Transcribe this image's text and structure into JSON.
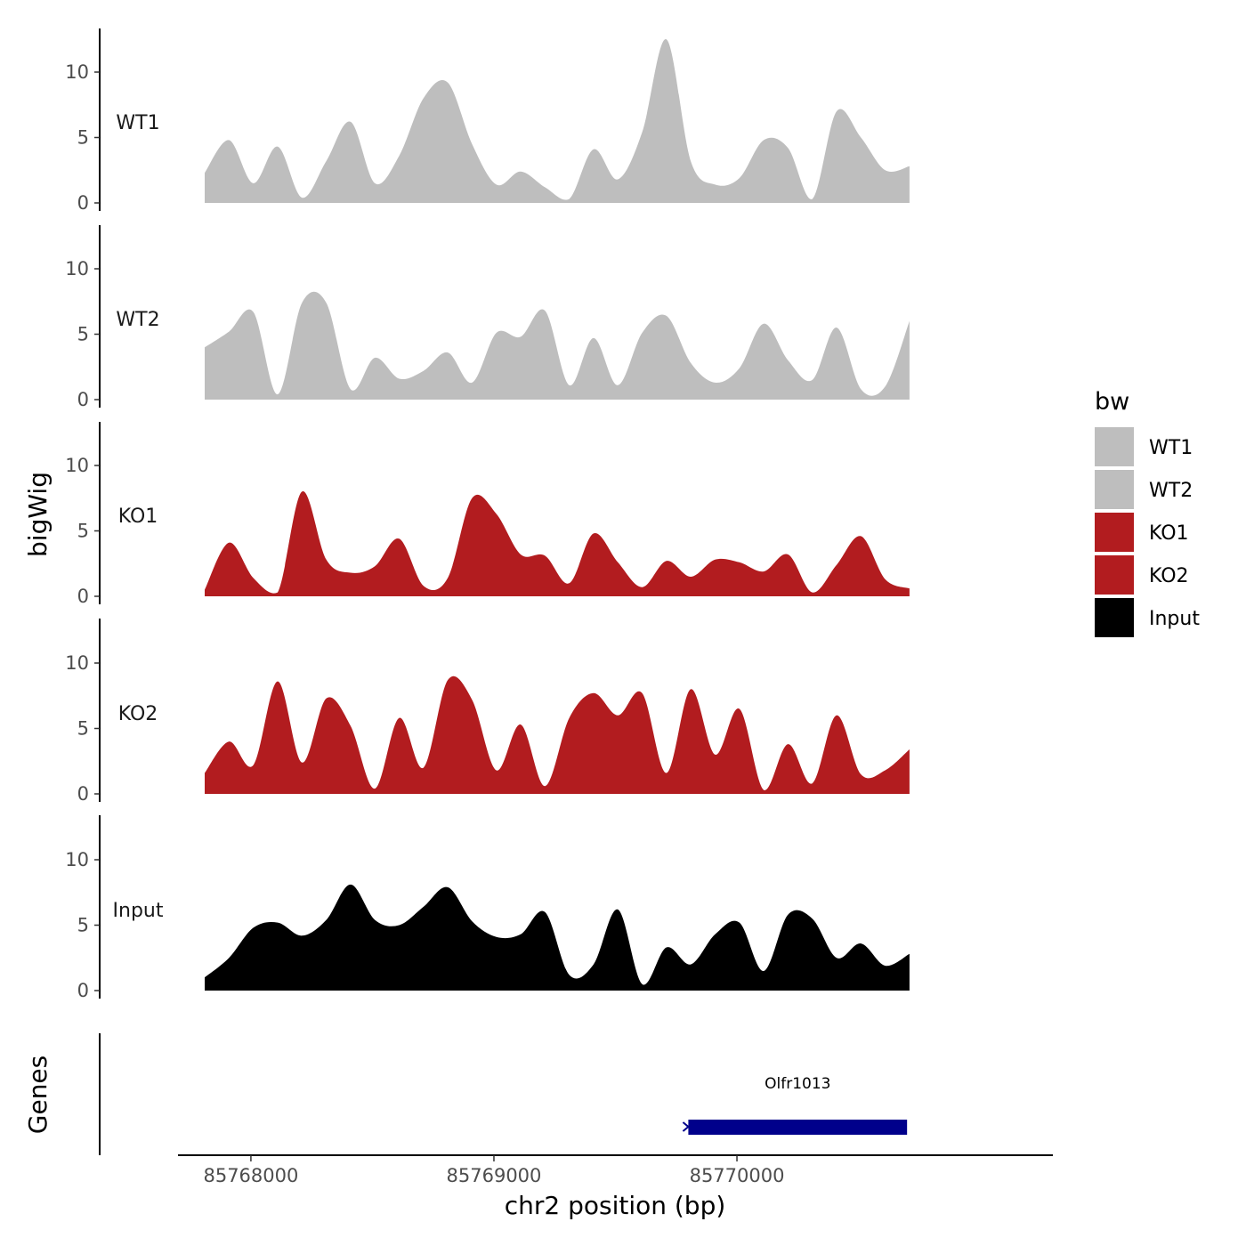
{
  "chart_data": {
    "type": "area",
    "xlabel": "chr2 position (bp)",
    "ylabel": "bigWig",
    "genes_label": "Genes",
    "xlim": [
      85767700,
      85771300
    ],
    "x_ticks": [
      85768000,
      85769000,
      85770000
    ],
    "x_tick_labels": [
      "85768000",
      "85769000",
      "85770000"
    ],
    "ylim": [
      0,
      13.5
    ],
    "y_ticks": [
      0,
      5,
      10
    ],
    "y_tick_labels": [
      "0",
      "5",
      "10"
    ],
    "x": [
      85767810,
      85767910,
      85768010,
      85768110,
      85768210,
      85768310,
      85768410,
      85768510,
      85768610,
      85768710,
      85768810,
      85768910,
      85769010,
      85769110,
      85769210,
      85769310,
      85769410,
      85769510,
      85769610,
      85769710,
      85769810,
      85769910,
      85770010,
      85770110,
      85770210,
      85770310,
      85770410,
      85770510,
      85770610,
      85770710
    ],
    "series": [
      {
        "name": "WT1",
        "color": "#bebebe",
        "values": [
          2.3,
          4.8,
          1.5,
          4.3,
          0.4,
          3.2,
          6.2,
          1.5,
          3.6,
          8.0,
          9.2,
          4.5,
          1.4,
          2.4,
          1.2,
          0.3,
          4.1,
          1.8,
          5.4,
          12.5,
          3.2,
          1.4,
          1.9,
          4.8,
          4.2,
          0.3,
          7.0,
          5.0,
          2.5,
          2.8
        ]
      },
      {
        "name": "WT2",
        "color": "#bebebe",
        "values": [
          4.0,
          5.2,
          6.7,
          0.4,
          7.4,
          7.4,
          0.8,
          3.2,
          1.6,
          2.2,
          3.6,
          1.3,
          5.1,
          4.8,
          6.8,
          1.1,
          4.7,
          1.1,
          5.1,
          6.4,
          2.8,
          1.3,
          2.4,
          5.8,
          3.0,
          1.5,
          5.5,
          0.8,
          1.0,
          6.0
        ]
      },
      {
        "name": "KO1",
        "color": "#b21c1f",
        "values": [
          0.5,
          4.1,
          1.4,
          0.3,
          8.0,
          2.8,
          1.8,
          2.3,
          4.4,
          0.8,
          1.4,
          7.5,
          6.3,
          3.2,
          3.1,
          1.0,
          4.8,
          2.6,
          0.7,
          2.7,
          1.5,
          2.8,
          2.6,
          1.9,
          3.2,
          0.3,
          2.4,
          4.6,
          1.3,
          0.6
        ]
      },
      {
        "name": "KO2",
        "color": "#b21c1f",
        "values": [
          1.6,
          4.0,
          2.2,
          8.6,
          2.4,
          7.3,
          5.2,
          0.4,
          5.8,
          2.0,
          8.7,
          7.2,
          1.8,
          5.3,
          0.6,
          5.8,
          7.7,
          6.0,
          7.7,
          1.6,
          8.0,
          3.0,
          6.5,
          0.3,
          3.8,
          0.8,
          6.0,
          1.5,
          1.8,
          3.4
        ]
      },
      {
        "name": "Input",
        "color": "#000000",
        "values": [
          1.0,
          2.5,
          4.8,
          5.2,
          4.2,
          5.4,
          8.1,
          5.4,
          5.0,
          6.4,
          7.9,
          5.3,
          4.1,
          4.3,
          6.0,
          1.2,
          2.0,
          6.2,
          0.5,
          3.3,
          2.0,
          4.3,
          5.2,
          1.5,
          5.8,
          5.5,
          2.5,
          3.6,
          1.9,
          2.8
        ]
      }
    ],
    "genes": [
      {
        "name": "Olfr1013",
        "start": 85769800,
        "end": 85770700,
        "color": "#00008b"
      }
    ],
    "legend": {
      "title": "bw",
      "entries": [
        {
          "label": "WT1",
          "color": "#bebebe"
        },
        {
          "label": "WT2",
          "color": "#bebebe"
        },
        {
          "label": "KO1",
          "color": "#b21c1f"
        },
        {
          "label": "KO2",
          "color": "#b21c1f"
        },
        {
          "label": "Input",
          "color": "#000000"
        }
      ],
      "position": "right"
    }
  }
}
